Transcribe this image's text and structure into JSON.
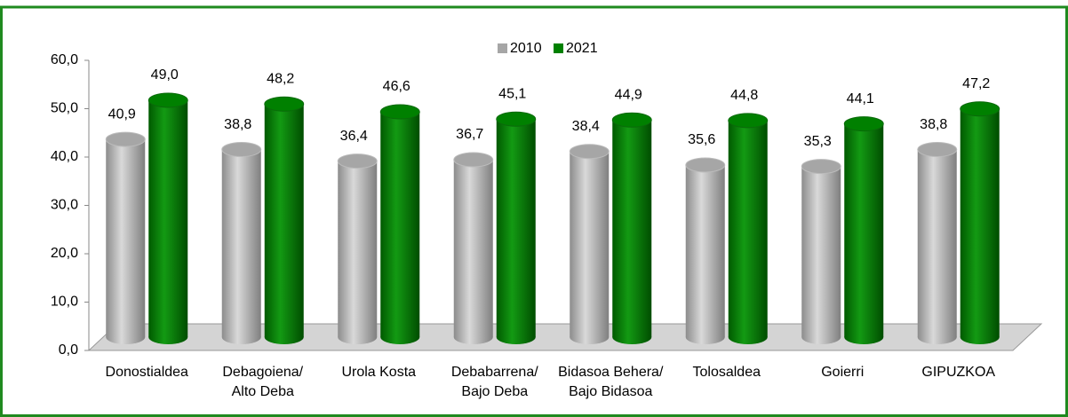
{
  "chart_data": {
    "type": "bar",
    "categories": [
      "Donostialdea",
      "Debagoiena/ Alto Deba",
      "Urola Kosta",
      "Debabarrena/ Bajo Deba",
      "Bidasoa Behera/ Bajo Bidasoa",
      "Tolosaldea",
      "Goierri",
      "GIPUZKOA"
    ],
    "series": [
      {
        "name": "2010",
        "color": "#a6a6a6",
        "values": [
          40.9,
          38.8,
          36.4,
          36.7,
          38.4,
          35.6,
          35.3,
          38.8
        ],
        "value_labels": [
          "40,9",
          "38,8",
          "36,4",
          "36,7",
          "38,4",
          "35,6",
          "35,3",
          "38,8"
        ]
      },
      {
        "name": "2021",
        "color": "#008000",
        "values": [
          49.0,
          48.2,
          46.6,
          45.1,
          44.9,
          44.8,
          44.1,
          47.2
        ],
        "value_labels": [
          "49,0",
          "48,2",
          "46,6",
          "45,1",
          "44,9",
          "44,8",
          "44,1",
          "47,2"
        ]
      }
    ],
    "ylim": [
      0,
      60
    ],
    "yticks": [
      {
        "value": 0,
        "label": "0,0"
      },
      {
        "value": 10,
        "label": "10,0"
      },
      {
        "value": 20,
        "label": "20,0"
      },
      {
        "value": 30,
        "label": "30,0"
      },
      {
        "value": 40,
        "label": "40,0"
      },
      {
        "value": 50,
        "label": "50,0"
      },
      {
        "value": 60,
        "label": "60,0"
      }
    ],
    "legend": "top"
  }
}
